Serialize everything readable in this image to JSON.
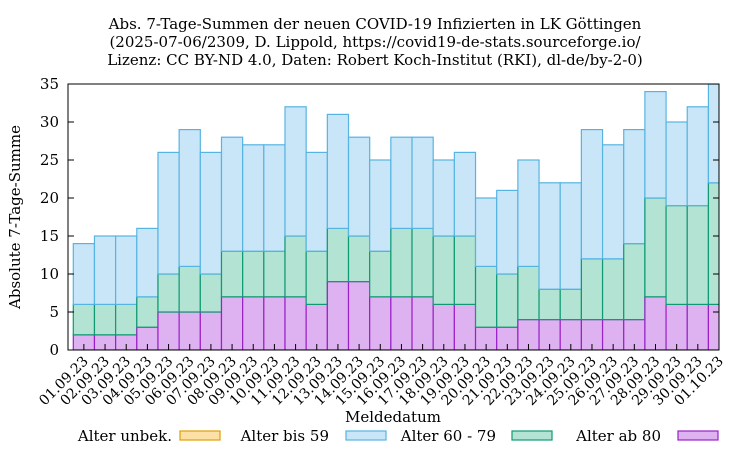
{
  "chart_data": {
    "type": "bar",
    "stacked": true,
    "title_lines": [
      "Abs. 7-Tage-Summen der neuen COVID-19 Infizierten in LK Göttingen",
      "(2025-07-06/2309, D. Lippold, https://covid19-de-stats.sourceforge.io/",
      "Lizenz: CC BY-ND 4.0, Daten: Robert Koch-Institut (RKI), dl-de/by-2-0)"
    ],
    "xlabel": "Meldedatum",
    "ylabel": "Absolute 7-Tage-Summe",
    "ylim": [
      0,
      35
    ],
    "yticks": [
      0,
      5,
      10,
      15,
      20,
      25,
      30,
      35
    ],
    "grid": false,
    "legend_position": "bottom",
    "categories": [
      "01.09.23",
      "02.09.23",
      "03.09.23",
      "04.09.23",
      "05.09.23",
      "06.09.23",
      "07.09.23",
      "08.09.23",
      "09.09.23",
      "10.09.23",
      "11.09.23",
      "12.09.23",
      "13.09.23",
      "14.09.23",
      "15.09.23",
      "16.09.23",
      "17.09.23",
      "18.09.23",
      "19.09.23",
      "20.09.23",
      "21.09.23",
      "22.09.23",
      "23.09.23",
      "24.09.23",
      "25.09.23",
      "26.09.23",
      "27.09.23",
      "28.09.23",
      "29.09.23",
      "30.09.23",
      "01.10.23"
    ],
    "series": [
      {
        "name": "Alter unbek.",
        "fill": "#fce0a6",
        "stroke": "#e0a000",
        "values": [
          0,
          0,
          0,
          0,
          0,
          0,
          0,
          0,
          0,
          0,
          0,
          0,
          0,
          0,
          0,
          0,
          0,
          0,
          0,
          0,
          0,
          0,
          0,
          0,
          0,
          0,
          0,
          0,
          0,
          0,
          0
        ]
      },
      {
        "name": "Alter bis 59",
        "fill": "#c9e6f8",
        "stroke": "#56b4e2",
        "values": [
          8,
          9,
          9,
          9,
          16,
          18,
          16,
          15,
          14,
          14,
          17,
          13,
          15,
          13,
          12,
          12,
          12,
          10,
          11,
          9,
          11,
          14,
          14,
          14,
          17,
          15,
          15,
          14,
          11,
          13,
          13
        ]
      },
      {
        "name": "Alter 60 - 79",
        "fill": "#b2e3d3",
        "stroke": "#0f9a73",
        "values": [
          4,
          4,
          4,
          4,
          5,
          6,
          5,
          6,
          6,
          6,
          8,
          7,
          7,
          6,
          6,
          9,
          9,
          9,
          9,
          8,
          7,
          7,
          4,
          4,
          8,
          8,
          10,
          13,
          13,
          13,
          16
        ]
      },
      {
        "name": "Alter ab 80",
        "fill": "#deb2f0",
        "stroke": "#9a21c8",
        "values": [
          2,
          2,
          2,
          3,
          5,
          5,
          5,
          7,
          7,
          7,
          7,
          6,
          9,
          9,
          7,
          7,
          7,
          6,
          6,
          3,
          3,
          4,
          4,
          4,
          4,
          4,
          4,
          7,
          6,
          6,
          6
        ]
      }
    ]
  }
}
